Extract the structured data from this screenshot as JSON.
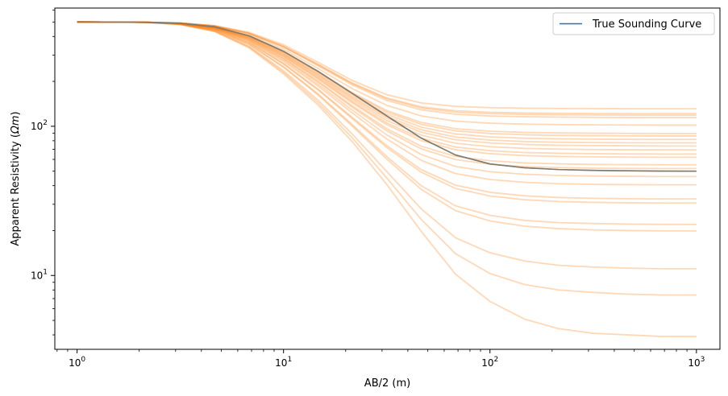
{
  "chart_data": {
    "type": "line",
    "xscale": "log",
    "yscale": "log",
    "xlim": [
      0.78,
      1300
    ],
    "ylim": [
      3.2,
      620
    ],
    "xlabel": "AB/2 (m)",
    "ylabel_main": "Apparent Resistivity (",
    "ylabel_math": "Ωm",
    "ylabel_end": ")",
    "x_ticks": [
      {
        "value": 1,
        "base": "10",
        "exp": "0"
      },
      {
        "value": 10,
        "base": "10",
        "exp": "1"
      },
      {
        "value": 100,
        "base": "10",
        "exp": "2"
      },
      {
        "value": 1000,
        "base": "10",
        "exp": "3"
      }
    ],
    "y_ticks": [
      {
        "value": 10,
        "base": "10",
        "exp": "1"
      },
      {
        "value": 100,
        "base": "10",
        "exp": "2"
      }
    ],
    "legend": {
      "placement": "top-right",
      "entries": [
        "True Sounding Curve"
      ]
    },
    "colors": {
      "true_curve": "#1f77b4",
      "samples": "#ff7f0e"
    },
    "x": [
      1,
      1.47,
      2.15,
      3.16,
      4.64,
      6.81,
      10,
      14.7,
      21.5,
      31.6,
      46.4,
      68.1,
      100,
      147,
      215,
      316,
      464,
      681,
      1000
    ],
    "series": [
      {
        "name": "True Sounding Curve",
        "role": "true",
        "values": [
          500,
          499.6,
          497.8,
          490.3,
          464.2,
          404,
          318.1,
          233.3,
          166.2,
          117.5,
          83.4,
          64.2,
          55.9,
          52.7,
          51.3,
          50.6,
          50.3,
          50.1,
          50
        ]
      },
      {
        "role": "sample",
        "values": [
          500,
          499.7,
          498.4,
          492.9,
          473.3,
          426.2,
          351.7,
          268.5,
          203,
          162.8,
          143.4,
          135.9,
          133.3,
          132.2,
          131.6,
          131.3,
          131.1,
          131,
          131
        ]
      },
      {
        "role": "sample",
        "values": [
          500,
          499.7,
          498.3,
          492.3,
          471.2,
          421.1,
          344.1,
          260.5,
          195.3,
          154.9,
          135.1,
          127,
          124.1,
          122.8,
          122.2,
          121.8,
          121.6,
          121.5,
          121.5
        ]
      },
      {
        "role": "sample",
        "values": [
          500,
          499.7,
          498.3,
          492.1,
          470.6,
          419.6,
          341.8,
          258.1,
          193,
          152.6,
          132.6,
          124.3,
          121.4,
          120,
          119.4,
          119,
          118.8,
          118.7,
          118.7
        ]
      },
      {
        "role": "sample",
        "values": [
          500,
          499.7,
          498.2,
          491.9,
          469.6,
          417.3,
          338.4,
          254.5,
          189.6,
          149,
          128.8,
          120.4,
          117.3,
          115.8,
          115.2,
          114.8,
          114.6,
          114.5,
          114.5
        ]
      },
      {
        "role": "sample",
        "values": [
          500,
          499.7,
          498.1,
          491.1,
          466.6,
          410.2,
          328,
          243.6,
          179,
          138.2,
          117.4,
          108.3,
          104.9,
          103.3,
          102.6,
          102.2,
          102,
          101.8,
          101.8
        ]
      },
      {
        "role": "sample",
        "values": [
          500,
          499.7,
          498,
          490.3,
          463.7,
          403.4,
          317.8,
          232.9,
          168.6,
          127.5,
          106.1,
          96.4,
          92.7,
          91,
          90.2,
          89.8,
          89.6,
          89.4,
          89.4
        ]
      },
      {
        "role": "sample",
        "values": [
          500,
          499.7,
          498,
          490.1,
          462.8,
          401.4,
          314.9,
          229.9,
          165.7,
          124.6,
          103,
          93.2,
          89.5,
          87.7,
          86.9,
          86.5,
          86.2,
          86.1,
          86.1
        ]
      },
      {
        "role": "sample",
        "values": [
          500,
          499.6,
          497.9,
          489.7,
          461.6,
          398.6,
          310.8,
          225.7,
          161.6,
          120.5,
          98.8,
          88.8,
          85,
          83.2,
          82.4,
          82,
          81.7,
          81.6,
          81.6
        ]
      },
      {
        "role": "sample",
        "values": [
          500,
          499.6,
          497.9,
          489.4,
          460.4,
          395.9,
          306.9,
          221.7,
          157.7,
          116.6,
          94.8,
          84.7,
          80.8,
          79,
          78.2,
          77.8,
          77.5,
          77.4,
          77.4
        ]
      },
      {
        "role": "sample",
        "values": [
          500,
          499.6,
          497.8,
          489.1,
          459.4,
          393.7,
          303.7,
          218.4,
          154.4,
          113.4,
          91.4,
          81.2,
          77.3,
          75.5,
          74.6,
          74.2,
          74,
          73.8,
          73.8
        ]
      },
      {
        "role": "sample",
        "values": [
          500,
          499.6,
          497.8,
          488.8,
          458.2,
          391,
          299.8,
          214.4,
          150.5,
          109.5,
          87.3,
          76.9,
          73,
          71.1,
          70.3,
          69.9,
          69.6,
          69.5,
          69.5
        ]
      },
      {
        "role": "sample",
        "values": [
          500,
          499.6,
          497.7,
          488.4,
          456.9,
          388.1,
          295.8,
          210.2,
          146.5,
          105.4,
          83.1,
          72.6,
          68.6,
          66.7,
          65.9,
          65.5,
          65.2,
          65.1,
          65.1
        ]
      },
      {
        "role": "sample",
        "values": [
          500,
          499.6,
          497.7,
          488.2,
          456,
          386.1,
          293,
          207.3,
          143.7,
          102.6,
          80.2,
          69.6,
          65.5,
          63.6,
          62.8,
          62.4,
          62.1,
          62,
          62
        ]
      },
      {
        "role": "sample",
        "values": [
          500,
          499.6,
          497.6,
          487.6,
          453.9,
          381.6,
          286.6,
          200.7,
          137.3,
          96.3,
          73.6,
          62.8,
          58.7,
          56.8,
          56,
          55.5,
          55.3,
          55.2,
          55.2
        ]
      },
      {
        "role": "sample",
        "values": [
          500,
          499.6,
          497.6,
          487.3,
          452.9,
          379.4,
          283.6,
          197.6,
          134.3,
          93.3,
          70.6,
          59.8,
          55.6,
          53.7,
          52.9,
          52.4,
          52.2,
          52.1,
          52.1
        ]
      },
      {
        "role": "sample",
        "values": [
          500,
          499.6,
          497.5,
          486.8,
          450.9,
          375.2,
          277.7,
          191.6,
          128.5,
          87.6,
          64.7,
          53.8,
          49.6,
          47.7,
          46.8,
          46.4,
          46.2,
          46,
          46
        ]
      },
      {
        "role": "sample",
        "values": [
          500,
          499.6,
          497.4,
          486.3,
          449,
          371.2,
          272.1,
          185.9,
          123,
          82.2,
          59.2,
          48.2,
          44,
          42.1,
          41.2,
          40.8,
          40.6,
          40.5,
          40.5
        ]
      },
      {
        "role": "sample",
        "values": [
          500,
          499.6,
          497.3,
          485.4,
          445.9,
          364.9,
          263.6,
          177.3,
          114.9,
          74.3,
          51.3,
          40.3,
          36.1,
          34.2,
          33.3,
          32.9,
          32.7,
          32.6,
          32.6
        ]
      },
      {
        "role": "sample",
        "values": [
          500,
          499.6,
          497.3,
          485.2,
          445.1,
          363.2,
          261.4,
          175.1,
          112.7,
          72.2,
          49.3,
          38.3,
          34.1,
          32.2,
          31.3,
          30.9,
          30.7,
          30.6,
          30.6
        ]
      },
      {
        "role": "sample",
        "values": [
          500,
          499.6,
          497.2,
          484.1,
          441.3,
          355.6,
          251.1,
          164.7,
          102.8,
          62.7,
          40,
          29.3,
          25.3,
          23.4,
          22.6,
          22.3,
          22.1,
          22,
          22
        ]
      },
      {
        "role": "sample",
        "values": [
          500,
          499.6,
          497.1,
          483.8,
          440.3,
          353.6,
          248.5,
          162.1,
          100.4,
          60.4,
          37.8,
          27.2,
          23.2,
          21.4,
          20.6,
          20.2,
          20,
          19.9,
          19.9
        ]
      },
      {
        "role": "sample",
        "values": [
          500,
          499.5,
          496.9,
          482.4,
          435.5,
          344.2,
          235.9,
          149.7,
          88.8,
          49.8,
          28,
          17.9,
          14.2,
          12.5,
          11.7,
          11.4,
          11.2,
          11.1,
          11.1
        ]
      },
      {
        "role": "sample",
        "values": [
          500,
          499.5,
          496.8,
          481.6,
          433.2,
          339.8,
          230.2,
          144.1,
          83.8,
          45.1,
          23.8,
          14,
          10.3,
          8.7,
          8,
          7.7,
          7.5,
          7.4,
          7.4
        ]
      },
      {
        "role": "sample",
        "values": [
          500,
          499.5,
          496.7,
          480.9,
          430.9,
          335.5,
          224.7,
          138.8,
          79,
          40.8,
          19.8,
          10.2,
          6.7,
          5.1,
          4.4,
          4.1,
          4,
          3.9,
          3.9
        ]
      }
    ]
  }
}
